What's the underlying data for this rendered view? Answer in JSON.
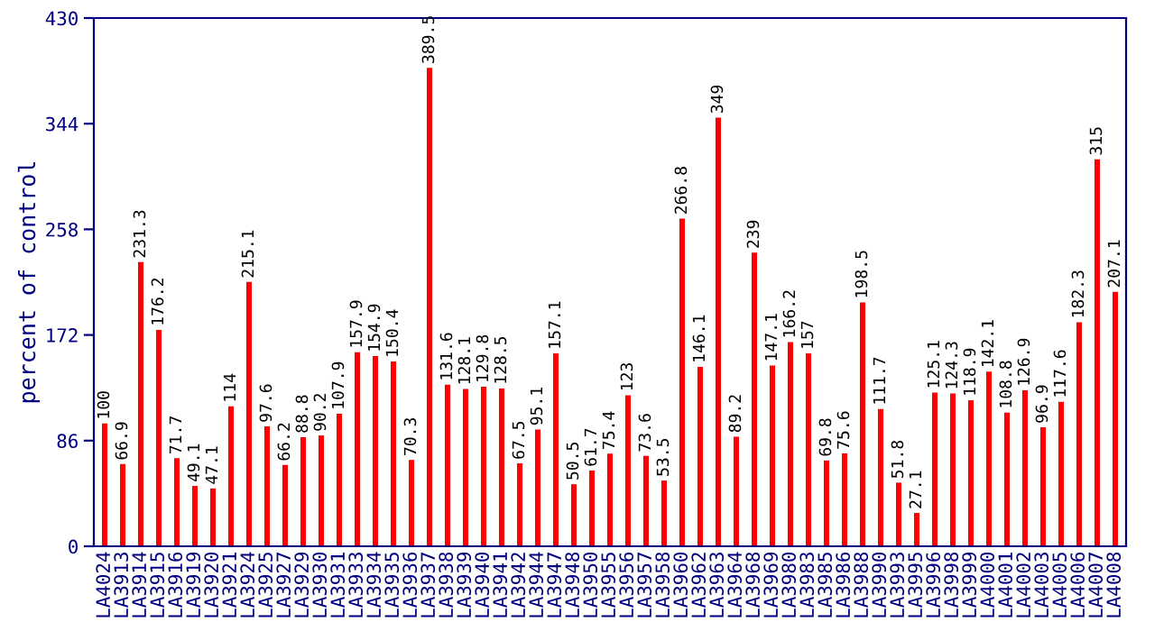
{
  "chart_data": {
    "type": "bar",
    "ylabel": "percent of control",
    "categories": [
      "LA4024",
      "LA3913",
      "LA3914",
      "LA3915",
      "LA3916",
      "LA3919",
      "LA3920",
      "LA3921",
      "LA3924",
      "LA3925",
      "LA3927",
      "LA3929",
      "LA3930",
      "LA3931",
      "LA3933",
      "LA3934",
      "LA3935",
      "LA3936",
      "LA3937",
      "LA3938",
      "LA3939",
      "LA3940",
      "LA3941",
      "LA3942",
      "LA3944",
      "LA3947",
      "LA3948",
      "LA3950",
      "LA3955",
      "LA3956",
      "LA3957",
      "LA3958",
      "LA3960",
      "LA3962",
      "LA3963",
      "LA3964",
      "LA3968",
      "LA3969",
      "LA3980",
      "LA3983",
      "LA3985",
      "LA3986",
      "LA3988",
      "LA3990",
      "LA3993",
      "LA3995",
      "LA3996",
      "LA3998",
      "LA3999",
      "LA4000",
      "LA4001",
      "LA4002",
      "LA4003",
      "LA4005",
      "LA4006",
      "LA4007",
      "LA4008"
    ],
    "values": [
      100,
      66.9,
      231.3,
      176.2,
      71.7,
      49.1,
      47.1,
      114,
      215.1,
      97.6,
      66.2,
      88.8,
      90.2,
      107.9,
      157.9,
      154.9,
      150.4,
      70.3,
      389.5,
      131.6,
      128.1,
      129.8,
      128.5,
      67.5,
      95.1,
      157.1,
      50.5,
      61.7,
      75.4,
      123,
      73.6,
      53.5,
      266.8,
      146.1,
      349,
      89.2,
      239,
      147.1,
      166.2,
      157,
      69.8,
      75.6,
      198.5,
      111.7,
      51.8,
      27.1,
      125.1,
      124.3,
      118.9,
      142.1,
      108.8,
      126.9,
      96.9,
      117.6,
      182.3,
      315,
      207.1
    ],
    "color": "#ff0000",
    "ylim": [
      0,
      430
    ],
    "yticks": [
      0,
      86,
      172,
      258,
      344,
      430
    ],
    "data_labels": true,
    "grid": false,
    "legend": false
  }
}
